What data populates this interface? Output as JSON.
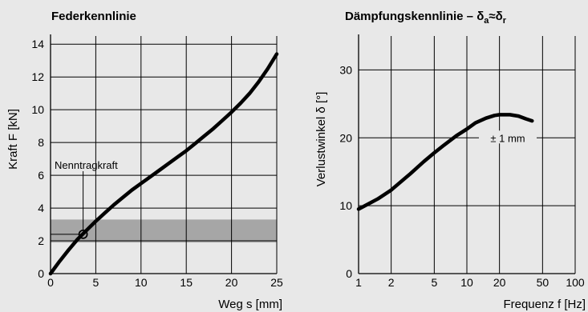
{
  "chart_data": [
    {
      "type": "line",
      "title": "Federkennlinie",
      "xlabel": "Weg s [mm]",
      "ylabel": "Kraft F [kN]",
      "xlim": [
        0,
        25
      ],
      "ylim": [
        0,
        14.5
      ],
      "xticks": [
        0,
        5,
        10,
        15,
        20,
        25
      ],
      "yticks": [
        0,
        2,
        4,
        6,
        8,
        10,
        12,
        14
      ],
      "grid": true,
      "band": {
        "y_from": 1.9,
        "y_to": 3.3,
        "color": "#a6a6a6"
      },
      "annotation": {
        "text": "Nenntragkraft",
        "x": 3.6,
        "y": 2.4
      },
      "series": [
        {
          "x": [
            0,
            1,
            2,
            3,
            4,
            5,
            6,
            7,
            8,
            9,
            10,
            11,
            12,
            13,
            14,
            15,
            16,
            17,
            18,
            19,
            20,
            21,
            22,
            23,
            24,
            25
          ],
          "values": [
            0,
            0.75,
            1.45,
            2.1,
            2.65,
            3.2,
            3.7,
            4.2,
            4.65,
            5.1,
            5.5,
            5.9,
            6.3,
            6.7,
            7.1,
            7.5,
            7.95,
            8.4,
            8.85,
            9.35,
            9.85,
            10.4,
            11.0,
            11.7,
            12.5,
            13.4
          ]
        }
      ]
    },
    {
      "type": "line",
      "title": "Dämpfungskennlinie – δ",
      "title_sub_a": "a",
      "title_mid": "≈δ",
      "title_sub_r": "r",
      "xlabel": "Frequenz f [Hz]",
      "ylabel": "Verlustwinkel δ [°]",
      "xscale": "log",
      "xlim": [
        1,
        100
      ],
      "ylim": [
        0,
        35
      ],
      "xticks": [
        1,
        2,
        5,
        10,
        20,
        50,
        100
      ],
      "yticks": [
        0,
        10,
        20,
        30
      ],
      "xgrid": [
        1,
        2,
        5,
        10,
        20,
        50,
        100
      ],
      "ygrid": [
        10,
        20,
        30
      ],
      "grid": true,
      "annotation": {
        "text": "± 1 mm",
        "x": 7,
        "y": 20
      },
      "series": [
        {
          "x": [
            1,
            1.5,
            2,
            3,
            4,
            5,
            6,
            8,
            10,
            12,
            15,
            18,
            20,
            25,
            30,
            35,
            40
          ],
          "values": [
            9.5,
            11,
            12.3,
            14.7,
            16.5,
            17.8,
            18.8,
            20.3,
            21.3,
            22.2,
            22.9,
            23.3,
            23.4,
            23.4,
            23.2,
            22.8,
            22.5
          ]
        }
      ]
    }
  ]
}
